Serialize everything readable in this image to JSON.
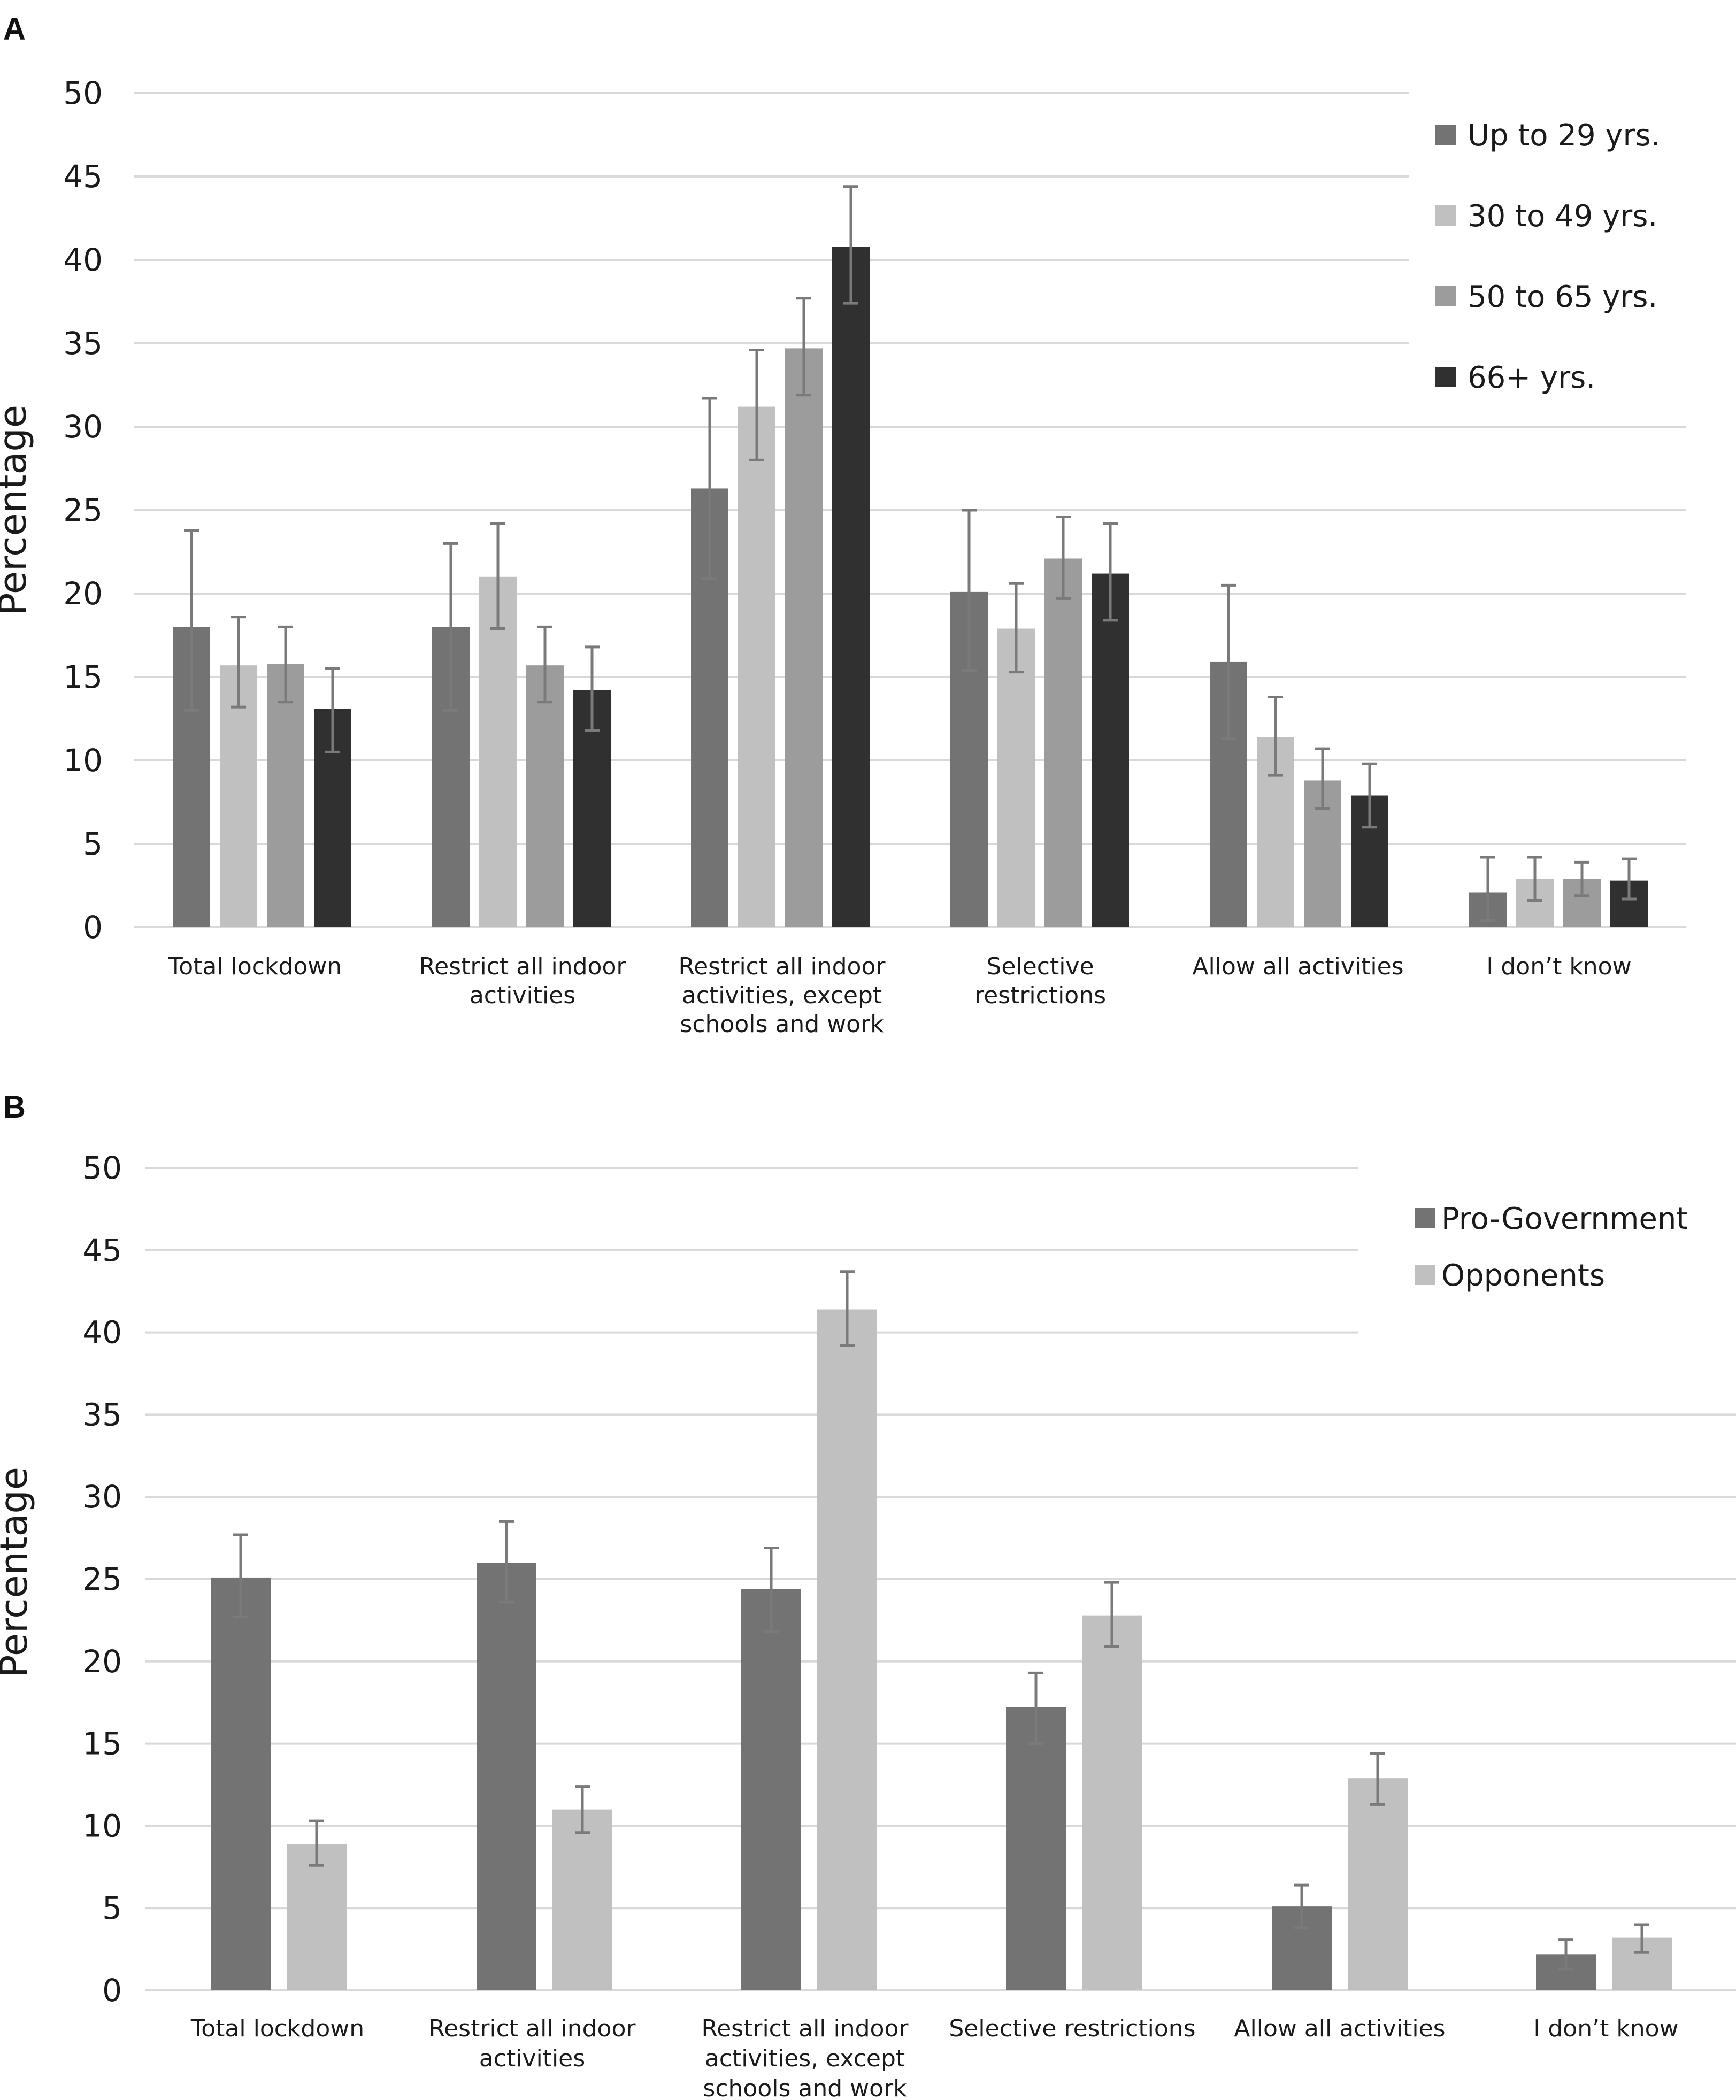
{
  "chart_data": [
    {
      "panel": "A",
      "type": "bar",
      "ylabel": "Percentage",
      "ylim": [
        0,
        50
      ],
      "yticks": [
        "0",
        "5",
        "10",
        "15",
        "20",
        "25",
        "30",
        "35",
        "40",
        "45",
        "50"
      ],
      "categories": [
        [
          "Total lockdown"
        ],
        [
          "Restrict all indoor",
          "activities"
        ],
        [
          "Restrict all indoor",
          "activities, except",
          "schools and work"
        ],
        [
          "Selective",
          "restrictions"
        ],
        [
          "Allow all activities"
        ],
        [
          "I don’t know"
        ]
      ],
      "series": [
        {
          "name": "Up to 29 yrs.",
          "color": "#737373",
          "values": [
            18,
            18,
            26.3,
            20.1,
            15.9,
            2.1
          ],
          "err_low": [
            13,
            13,
            20.9,
            15.4,
            11.3,
            0.4
          ],
          "err_high": [
            23.8,
            23,
            31.7,
            25,
            20.5,
            4.2
          ]
        },
        {
          "name": "30 to 49 yrs.",
          "color": "#c0c0c0",
          "values": [
            15.7,
            21,
            31.2,
            17.9,
            11.4,
            2.9
          ],
          "err_low": [
            13.2,
            17.9,
            28,
            15.3,
            9.1,
            1.6
          ],
          "err_high": [
            18.6,
            24.2,
            34.6,
            20.6,
            13.8,
            4.2
          ]
        },
        {
          "name": "50 to 65 yrs.",
          "color": "#9c9c9c",
          "values": [
            15.8,
            15.7,
            34.7,
            22.1,
            8.8,
            2.9
          ],
          "err_low": [
            13.5,
            13.5,
            31.9,
            19.7,
            7.1,
            1.9
          ],
          "err_high": [
            18,
            18,
            37.7,
            24.6,
            10.7,
            3.9
          ]
        },
        {
          "name": "66+ yrs.",
          "color": "#303030",
          "values": [
            13.1,
            14.2,
            40.8,
            21.2,
            7.9,
            2.8
          ],
          "err_low": [
            10.5,
            11.8,
            37.4,
            18.4,
            6,
            1.7
          ],
          "err_high": [
            15.5,
            16.8,
            44.4,
            24.2,
            9.8,
            4.1
          ]
        }
      ]
    },
    {
      "panel": "B",
      "type": "bar",
      "ylabel": "Percentage",
      "ylim": [
        0,
        50
      ],
      "yticks": [
        "0",
        "5",
        "10",
        "15",
        "20",
        "25",
        "30",
        "35",
        "40",
        "45",
        "50"
      ],
      "categories": [
        [
          "Total lockdown"
        ],
        [
          "Restrict all indoor",
          "activities"
        ],
        [
          "Restrict all indoor",
          "activities, except",
          "schools and work"
        ],
        [
          "Selective restrictions"
        ],
        [
          "Allow all activities"
        ],
        [
          "I don’t know"
        ]
      ],
      "series": [
        {
          "name": "Pro-Government",
          "color": "#737373",
          "values": [
            25.1,
            26,
            24.4,
            17.2,
            5.1,
            2.2
          ],
          "err_low": [
            22.7,
            23.6,
            21.8,
            15,
            3.8,
            1.3
          ],
          "err_high": [
            27.7,
            28.5,
            26.9,
            19.3,
            6.4,
            3.1
          ]
        },
        {
          "name": "Opponents",
          "color": "#c0c0c0",
          "values": [
            8.9,
            11,
            41.4,
            22.8,
            12.9,
            3.2
          ],
          "err_low": [
            7.6,
            9.6,
            39.2,
            20.9,
            11.3,
            2.3
          ],
          "err_high": [
            10.3,
            12.4,
            43.7,
            24.8,
            14.4,
            4
          ]
        }
      ]
    }
  ]
}
